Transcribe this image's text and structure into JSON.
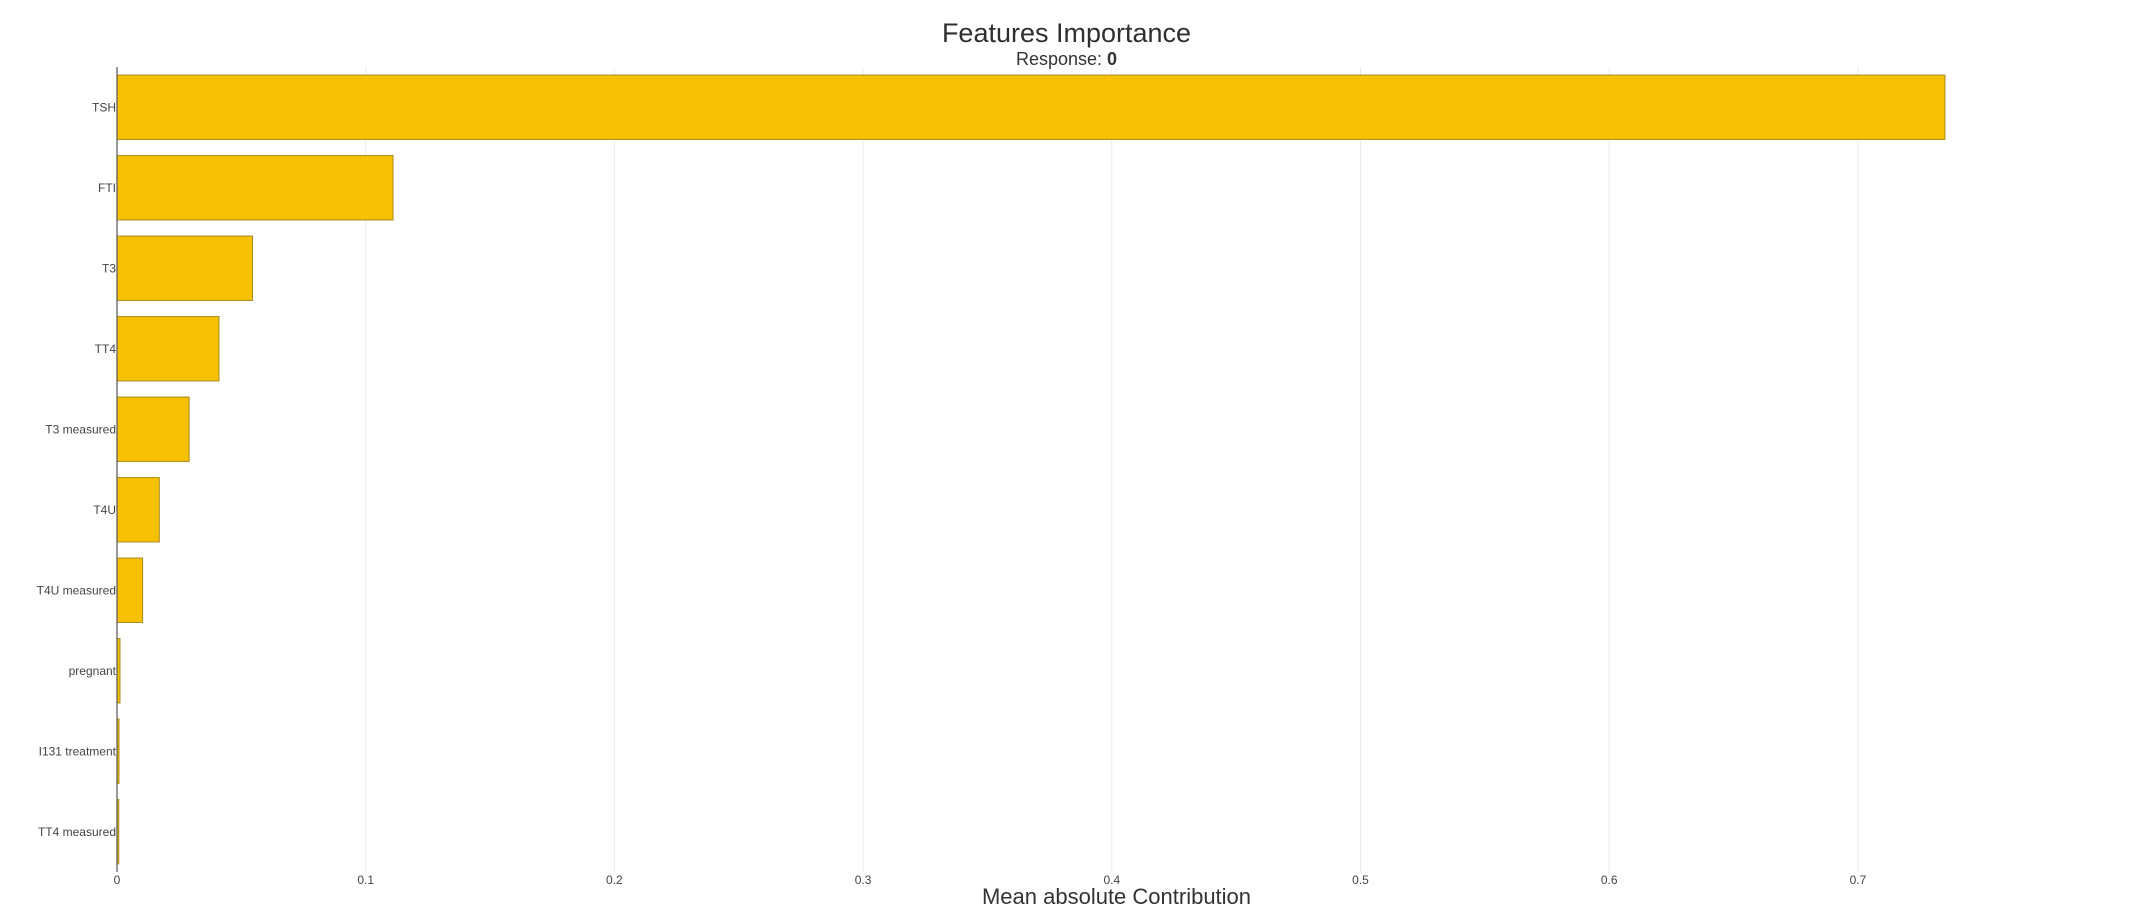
{
  "chart_data": {
    "type": "bar",
    "orientation": "horizontal",
    "title": "Features Importance",
    "subtitle_label": "Response:",
    "subtitle_value": "0",
    "xlabel": "Mean absolute Contribution",
    "ylabel": "",
    "categories": [
      "TSH",
      "FTI",
      "T3",
      "TT4",
      "T3 measured",
      "T4U",
      "T4U measured",
      "pregnant",
      "I131 treatment",
      "TT4 measured"
    ],
    "values": [
      0.735,
      0.111,
      0.0545,
      0.041,
      0.029,
      0.017,
      0.0103,
      0.0012,
      0.0008,
      0.0007
    ],
    "xlim": [
      0,
      0.77
    ],
    "xticks": [
      0,
      0.1,
      0.2,
      0.3,
      0.4,
      0.5,
      0.6,
      0.7
    ],
    "xtick_labels": [
      "0",
      "0.1",
      "0.2",
      "0.3",
      "0.4",
      "0.5",
      "0.6",
      "0.7"
    ],
    "grid": "vertical",
    "legend": "none",
    "colors": {
      "bar_fill": "#F5C100",
      "bar_stroke": "#A88A1E",
      "grid": "#ebebeb",
      "axis": "#555555"
    }
  }
}
